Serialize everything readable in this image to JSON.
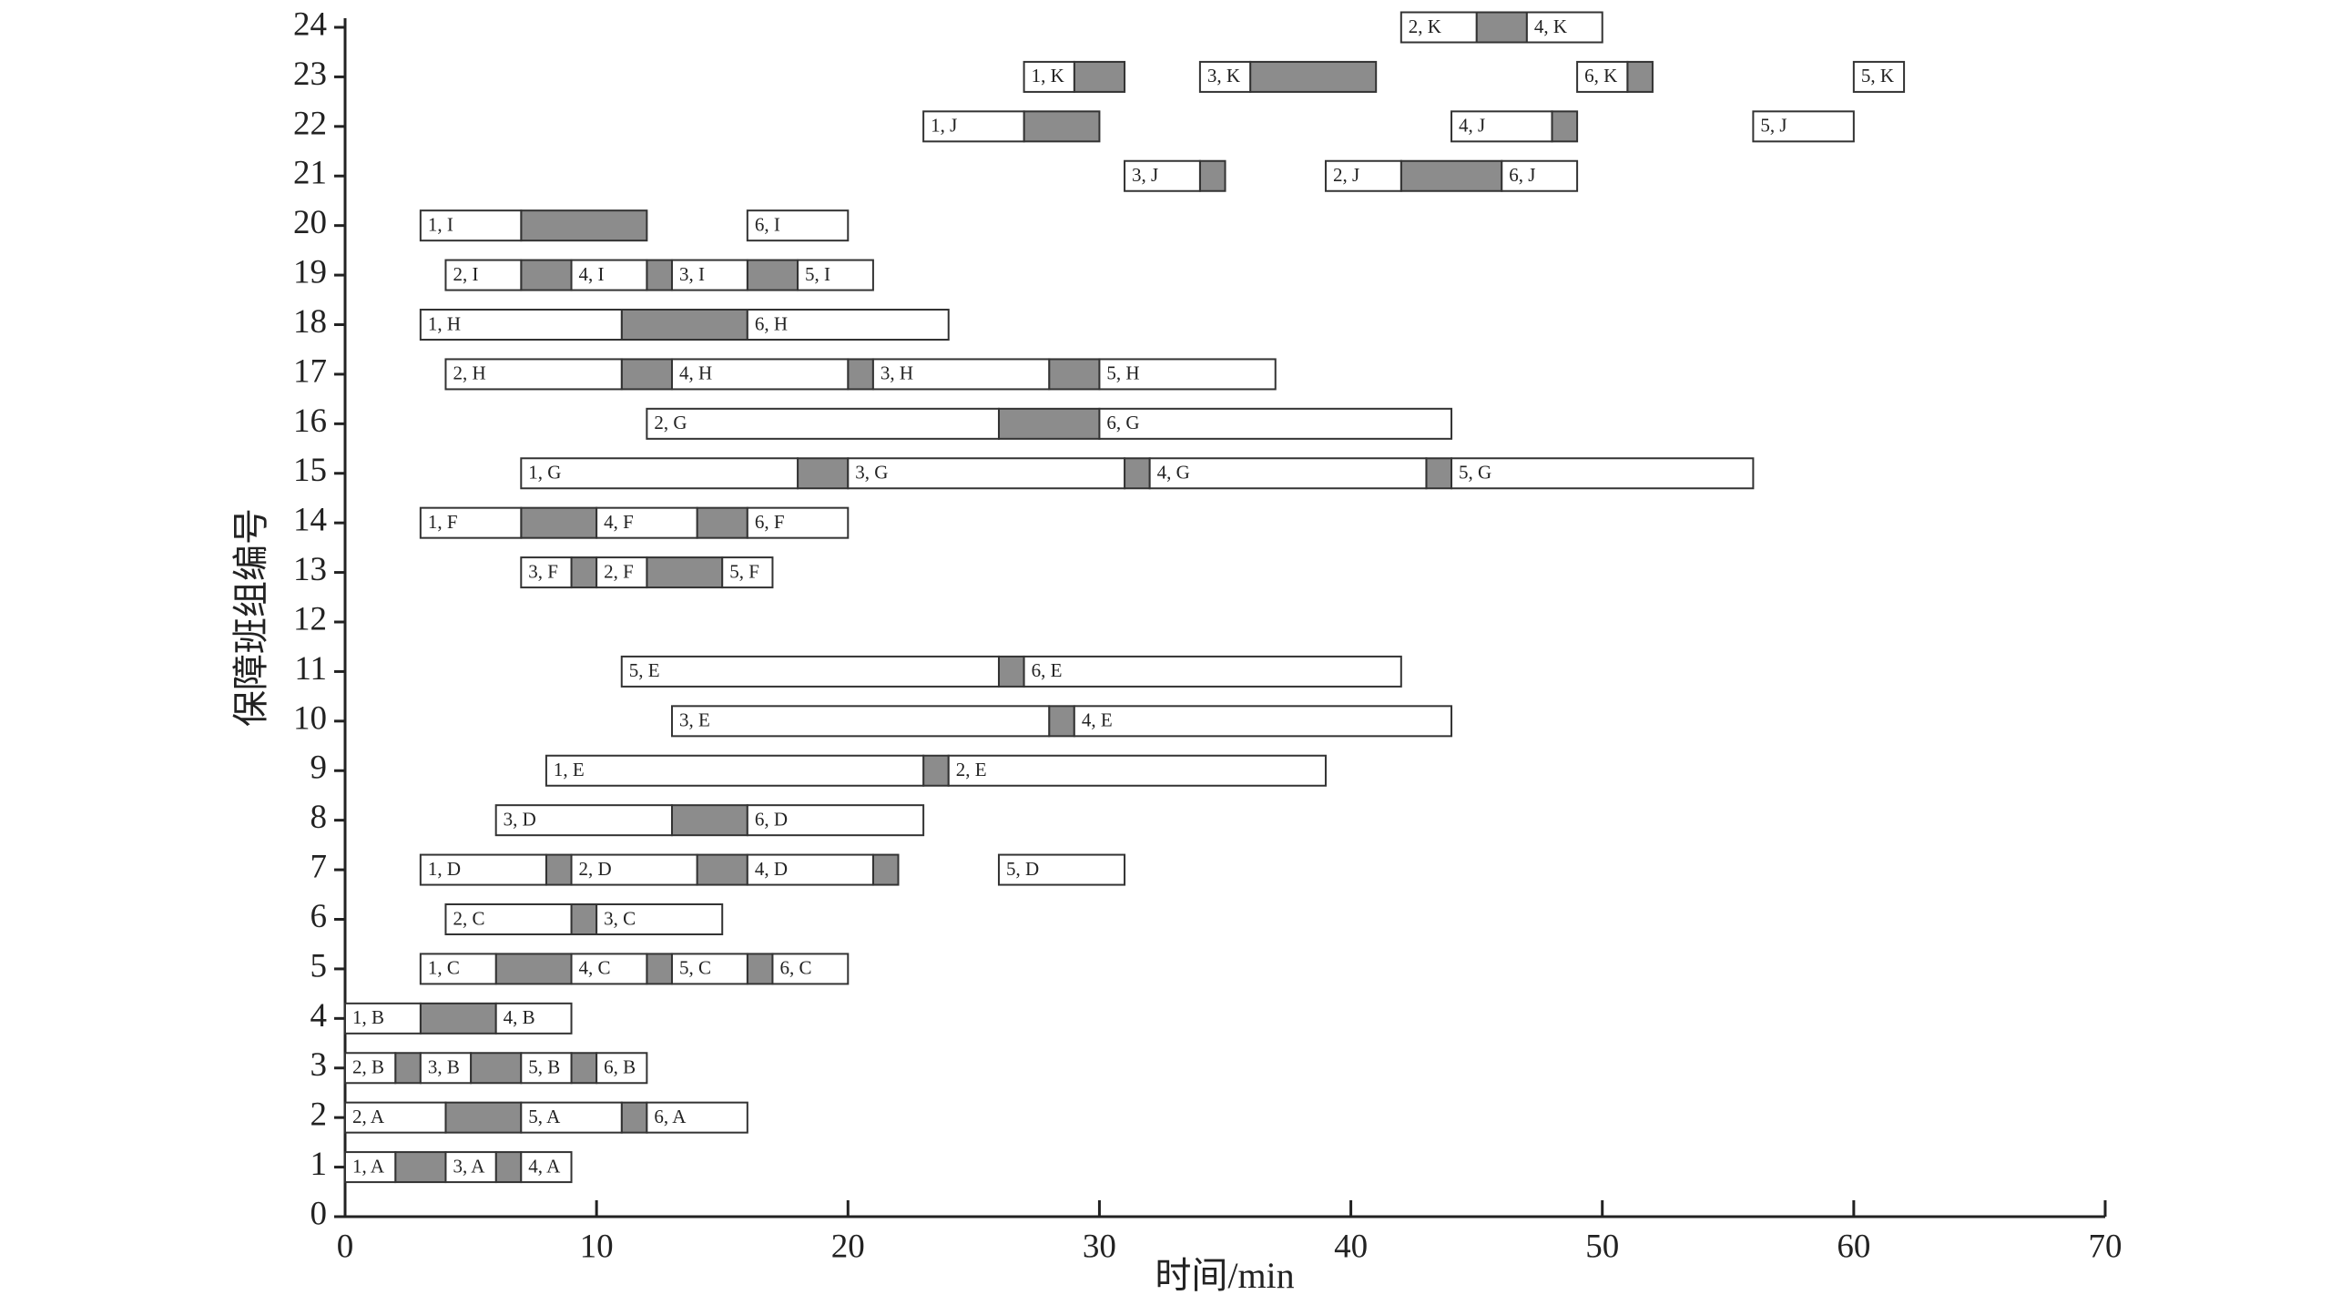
{
  "chart_data": {
    "type": "gantt",
    "xlabel": "时间/min",
    "ylabel": "保障班组编号",
    "xlim": [
      0,
      70
    ],
    "xticks": [
      0,
      10,
      20,
      30,
      40,
      50,
      60,
      70
    ],
    "ylim": [
      0,
      24
    ],
    "yticks": [
      0,
      1,
      2,
      3,
      4,
      5,
      6,
      7,
      8,
      9,
      10,
      11,
      12,
      13,
      14,
      15,
      16,
      17,
      18,
      19,
      20,
      21,
      22,
      23,
      24
    ],
    "task_color": "#ffffff",
    "wait_color": "#8c8c8c",
    "rows": [
      {
        "row": 1,
        "tasks": [
          {
            "label": "1, A",
            "start": 0,
            "end": 2
          },
          {
            "label": "3, A",
            "start": 4,
            "end": 6
          },
          {
            "label": "4, A",
            "start": 7,
            "end": 9
          }
        ],
        "waits": [
          {
            "start": 2,
            "end": 4
          },
          {
            "start": 6,
            "end": 7
          }
        ]
      },
      {
        "row": 2,
        "tasks": [
          {
            "label": "2, A",
            "start": 0,
            "end": 4
          },
          {
            "label": "5, A",
            "start": 7,
            "end": 11
          },
          {
            "label": "6, A",
            "start": 12,
            "end": 16
          }
        ],
        "waits": [
          {
            "start": 4,
            "end": 7
          },
          {
            "start": 11,
            "end": 12
          }
        ]
      },
      {
        "row": 3,
        "tasks": [
          {
            "label": "2, B",
            "start": 0,
            "end": 2
          },
          {
            "label": "3, B",
            "start": 3,
            "end": 5
          },
          {
            "label": "5, B",
            "start": 7,
            "end": 9
          },
          {
            "label": "6, B",
            "start": 10,
            "end": 12
          }
        ],
        "waits": [
          {
            "start": 2,
            "end": 3
          },
          {
            "start": 5,
            "end": 7
          },
          {
            "start": 9,
            "end": 10
          }
        ]
      },
      {
        "row": 4,
        "tasks": [
          {
            "label": "1, B",
            "start": 0,
            "end": 3
          },
          {
            "label": "4, B",
            "start": 6,
            "end": 9
          }
        ],
        "waits": [
          {
            "start": 3,
            "end": 6
          }
        ]
      },
      {
        "row": 5,
        "tasks": [
          {
            "label": "1, C",
            "start": 3,
            "end": 6
          },
          {
            "label": "4, C",
            "start": 9,
            "end": 12
          },
          {
            "label": "5, C",
            "start": 13,
            "end": 16
          },
          {
            "label": "6, C",
            "start": 17,
            "end": 20
          }
        ],
        "waits": [
          {
            "start": 6,
            "end": 9
          },
          {
            "start": 12,
            "end": 13
          },
          {
            "start": 16,
            "end": 17
          }
        ]
      },
      {
        "row": 6,
        "tasks": [
          {
            "label": "2, C",
            "start": 4,
            "end": 9
          },
          {
            "label": "3, C",
            "start": 10,
            "end": 15
          }
        ],
        "waits": [
          {
            "start": 9,
            "end": 10
          }
        ]
      },
      {
        "row": 7,
        "tasks": [
          {
            "label": "1, D",
            "start": 3,
            "end": 8
          },
          {
            "label": "2, D",
            "start": 9,
            "end": 14
          },
          {
            "label": "4, D",
            "start": 16,
            "end": 21
          },
          {
            "label": "5, D",
            "start": 26,
            "end": 31
          }
        ],
        "waits": [
          {
            "start": 8,
            "end": 9
          },
          {
            "start": 14,
            "end": 16
          },
          {
            "start": 21,
            "end": 22
          }
        ]
      },
      {
        "row": 8,
        "tasks": [
          {
            "label": "3, D",
            "start": 6,
            "end": 13
          },
          {
            "label": "6, D",
            "start": 16,
            "end": 23
          }
        ],
        "waits": [
          {
            "start": 13,
            "end": 16
          }
        ]
      },
      {
        "row": 9,
        "tasks": [
          {
            "label": "1, E",
            "start": 8,
            "end": 23
          },
          {
            "label": "2, E",
            "start": 24,
            "end": 39
          }
        ],
        "waits": [
          {
            "start": 23,
            "end": 24
          }
        ]
      },
      {
        "row": 10,
        "tasks": [
          {
            "label": "3, E",
            "start": 13,
            "end": 28
          },
          {
            "label": "4, E",
            "start": 29,
            "end": 44
          }
        ],
        "waits": [
          {
            "start": 28,
            "end": 29
          }
        ]
      },
      {
        "row": 11,
        "tasks": [
          {
            "label": "5, E",
            "start": 11,
            "end": 26
          },
          {
            "label": "6, E",
            "start": 27,
            "end": 42
          }
        ],
        "waits": [
          {
            "start": 26,
            "end": 27
          }
        ]
      },
      {
        "row": 13,
        "tasks": [
          {
            "label": "3, F",
            "start": 7,
            "end": 9
          },
          {
            "label": "2, F",
            "start": 10,
            "end": 12
          },
          {
            "label": "5, F",
            "start": 15,
            "end": 17
          }
        ],
        "waits": [
          {
            "start": 9,
            "end": 10
          },
          {
            "start": 12,
            "end": 15
          }
        ]
      },
      {
        "row": 14,
        "tasks": [
          {
            "label": "1, F",
            "start": 3,
            "end": 7
          },
          {
            "label": "4, F",
            "start": 10,
            "end": 14
          },
          {
            "label": "6, F",
            "start": 16,
            "end": 20
          }
        ],
        "waits": [
          {
            "start": 7,
            "end": 10
          },
          {
            "start": 14,
            "end": 16
          }
        ]
      },
      {
        "row": 15,
        "tasks": [
          {
            "label": "1, G",
            "start": 7,
            "end": 18
          },
          {
            "label": "3, G",
            "start": 20,
            "end": 31
          },
          {
            "label": "4, G",
            "start": 32,
            "end": 43
          },
          {
            "label": "5, G",
            "start": 44,
            "end": 56
          }
        ],
        "waits": [
          {
            "start": 18,
            "end": 20
          },
          {
            "start": 31,
            "end": 32
          },
          {
            "start": 43,
            "end": 44
          }
        ]
      },
      {
        "row": 16,
        "tasks": [
          {
            "label": "2, G",
            "start": 12,
            "end": 26
          },
          {
            "label": "6, G",
            "start": 30,
            "end": 44
          }
        ],
        "waits": [
          {
            "start": 26,
            "end": 30
          }
        ]
      },
      {
        "row": 17,
        "tasks": [
          {
            "label": "2, H",
            "start": 4,
            "end": 11
          },
          {
            "label": "4, H",
            "start": 13,
            "end": 20
          },
          {
            "label": "3, H",
            "start": 21,
            "end": 28
          },
          {
            "label": "5, H",
            "start": 30,
            "end": 37
          }
        ],
        "waits": [
          {
            "start": 11,
            "end": 13
          },
          {
            "start": 20,
            "end": 21
          },
          {
            "start": 28,
            "end": 30
          }
        ]
      },
      {
        "row": 18,
        "tasks": [
          {
            "label": "1, H",
            "start": 3,
            "end": 11
          },
          {
            "label": "6, H",
            "start": 16,
            "end": 24
          }
        ],
        "waits": [
          {
            "start": 11,
            "end": 16
          }
        ]
      },
      {
        "row": 19,
        "tasks": [
          {
            "label": "2, I",
            "start": 4,
            "end": 7
          },
          {
            "label": "4, I",
            "start": 9,
            "end": 12
          },
          {
            "label": "3, I",
            "start": 13,
            "end": 16
          },
          {
            "label": "5, I",
            "start": 18,
            "end": 21
          }
        ],
        "waits": [
          {
            "start": 7,
            "end": 9
          },
          {
            "start": 12,
            "end": 13
          },
          {
            "start": 16,
            "end": 18
          }
        ]
      },
      {
        "row": 20,
        "tasks": [
          {
            "label": "1, I",
            "start": 3,
            "end": 7
          },
          {
            "label": "6, I",
            "start": 16,
            "end": 20
          }
        ],
        "waits": [
          {
            "start": 7,
            "end": 12
          }
        ]
      },
      {
        "row": 21,
        "tasks": [
          {
            "label": "3, J",
            "start": 31,
            "end": 34
          },
          {
            "label": "2, J",
            "start": 39,
            "end": 42
          },
          {
            "label": "6, J",
            "start": 46,
            "end": 49
          }
        ],
        "waits": [
          {
            "start": 34,
            "end": 35
          },
          {
            "start": 42,
            "end": 46
          }
        ]
      },
      {
        "row": 22,
        "tasks": [
          {
            "label": "1, J",
            "start": 23,
            "end": 27
          },
          {
            "label": "4, J",
            "start": 44,
            "end": 48
          },
          {
            "label": "5, J",
            "start": 56,
            "end": 60
          }
        ],
        "waits": [
          {
            "start": 27,
            "end": 30
          },
          {
            "start": 48,
            "end": 49
          }
        ]
      },
      {
        "row": 23,
        "tasks": [
          {
            "label": "1, K",
            "start": 27,
            "end": 29
          },
          {
            "label": "3, K",
            "start": 34,
            "end": 36
          },
          {
            "label": "6, K",
            "start": 49,
            "end": 51
          },
          {
            "label": "5, K",
            "start": 60,
            "end": 62
          }
        ],
        "waits": [
          {
            "start": 29,
            "end": 31
          },
          {
            "start": 36,
            "end": 41
          },
          {
            "start": 51,
            "end": 52
          }
        ]
      },
      {
        "row": 24,
        "tasks": [
          {
            "label": "2, K",
            "start": 42,
            "end": 45
          },
          {
            "label": "4, K",
            "start": 47,
            "end": 50
          }
        ],
        "waits": [
          {
            "start": 45,
            "end": 47
          }
        ]
      }
    ]
  }
}
